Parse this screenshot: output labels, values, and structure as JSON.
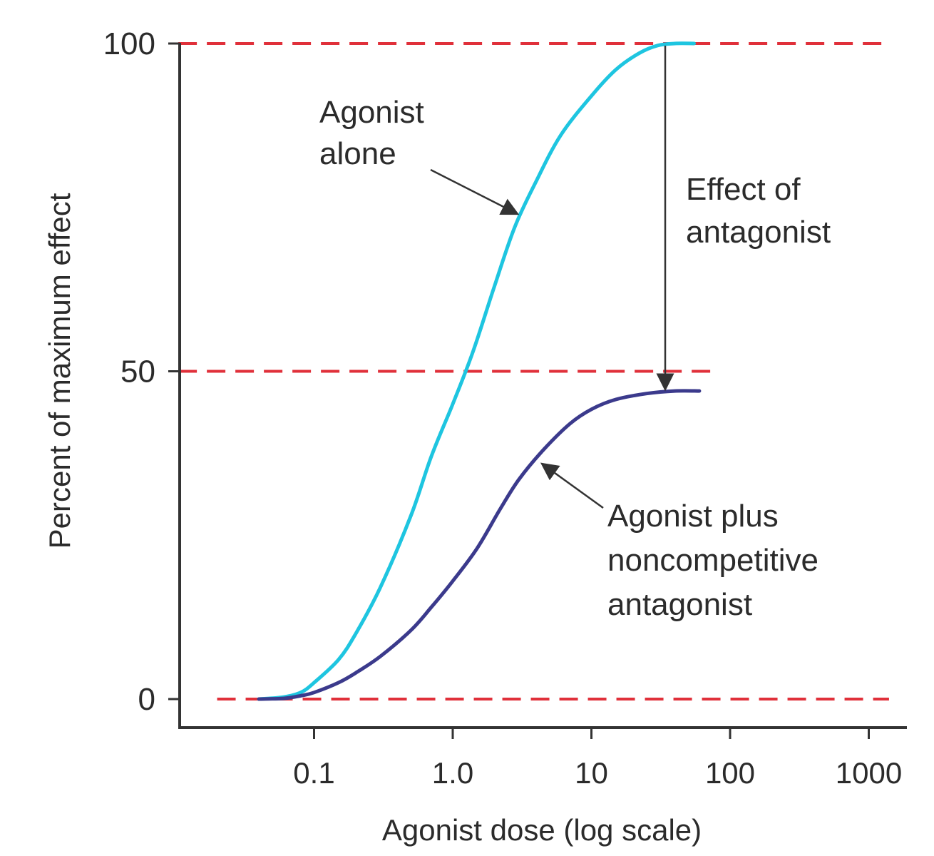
{
  "chart_data": {
    "type": "line",
    "title": "",
    "xlabel": "Agonist dose (log scale)",
    "ylabel": "Percent of maximum effect",
    "x_scale": "log",
    "xlim": [
      0.01,
      2000
    ],
    "ylim": [
      0,
      100
    ],
    "x_ticks": [
      {
        "value": 0.1,
        "label": "0.1"
      },
      {
        "value": 1,
        "label": "1.0"
      },
      {
        "value": 10,
        "label": "10"
      },
      {
        "value": 100,
        "label": "100"
      },
      {
        "value": 1000,
        "label": "1000"
      }
    ],
    "y_ticks": [
      {
        "value": 0,
        "label": "0"
      },
      {
        "value": 50,
        "label": "50"
      },
      {
        "value": 100,
        "label": "100"
      }
    ],
    "reference_lines": [
      {
        "y": 100,
        "x_from": 0.0105,
        "x_to": 1400
      },
      {
        "y": 50,
        "x_from": 0.0105,
        "x_to": 80
      },
      {
        "y": 0,
        "x_from": 0.02,
        "x_to": 1400
      }
    ],
    "series": [
      {
        "color": "#1ec5e0",
        "points": [
          [
            0.04,
            0
          ],
          [
            0.06,
            0.3
          ],
          [
            0.08,
            1
          ],
          [
            0.1,
            2.5
          ],
          [
            0.15,
            6
          ],
          [
            0.2,
            10
          ],
          [
            0.3,
            17
          ],
          [
            0.5,
            28
          ],
          [
            0.7,
            37
          ],
          [
            1.0,
            45
          ],
          [
            1.4,
            53
          ],
          [
            2.0,
            63
          ],
          [
            2.8,
            72
          ],
          [
            4.0,
            79
          ],
          [
            6.0,
            86
          ],
          [
            10,
            92
          ],
          [
            15,
            96
          ],
          [
            22,
            98.5
          ],
          [
            30,
            99.7
          ],
          [
            40,
            100
          ],
          [
            55,
            100
          ]
        ]
      },
      {
        "color": "#3b3a8c",
        "points": [
          [
            0.04,
            0
          ],
          [
            0.06,
            0.1
          ],
          [
            0.08,
            0.5
          ],
          [
            0.1,
            1
          ],
          [
            0.15,
            2.5
          ],
          [
            0.2,
            4
          ],
          [
            0.3,
            6.5
          ],
          [
            0.5,
            10.5
          ],
          [
            0.7,
            14
          ],
          [
            1.0,
            18
          ],
          [
            1.5,
            23
          ],
          [
            2.2,
            29
          ],
          [
            3.0,
            33.5
          ],
          [
            4.5,
            38
          ],
          [
            7,
            42
          ],
          [
            10,
            44.2
          ],
          [
            15,
            45.7
          ],
          [
            25,
            46.6
          ],
          [
            40,
            47
          ],
          [
            60,
            47
          ]
        ]
      }
    ],
    "annotations": [
      {
        "lines": [
          "Agonist",
          "alone"
        ]
      },
      {
        "lines": [
          "Effect of",
          "antagonist"
        ]
      },
      {
        "lines": [
          "Agonist plus",
          "noncompetitive",
          "antagonist"
        ]
      }
    ]
  }
}
